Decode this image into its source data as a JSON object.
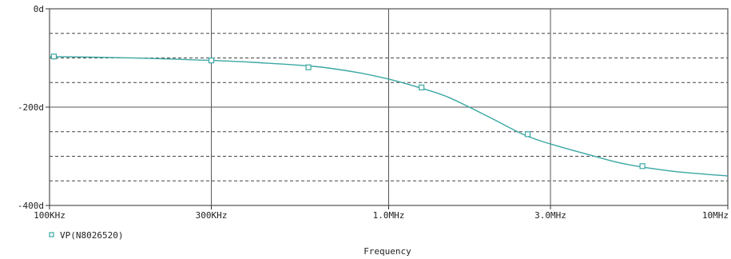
{
  "chart_data": {
    "type": "line",
    "xscale": "log",
    "xlabel": "Frequency",
    "ylabel": "",
    "xlim": [
      100000,
      10000000
    ],
    "ylim": [
      -400,
      0
    ],
    "x_ticks": [
      {
        "value": 100000,
        "label": "100KHz"
      },
      {
        "value": 300000,
        "label": "300KHz"
      },
      {
        "value": 1000000,
        "label": "1.0MHz"
      },
      {
        "value": 3000000,
        "label": "3.0MHz"
      },
      {
        "value": 10000000,
        "label": "10MHz"
      }
    ],
    "y_ticks": [
      {
        "value": 0,
        "label": "0d"
      },
      {
        "value": -200,
        "label": "-200d"
      },
      {
        "value": -400,
        "label": "-400d"
      }
    ],
    "y_dashed_gridlines": [
      -50,
      -100,
      -150,
      -250,
      -300,
      -350
    ],
    "grid": true,
    "legend": "bottom-left",
    "series": [
      {
        "name": "VP(N8026520)",
        "color": "#3aa7a3",
        "marker": "square",
        "x": [
          100000,
          150000,
          200000,
          300000,
          400000,
          600000,
          800000,
          1000000,
          1200000,
          1500000,
          2000000,
          2500000,
          3000000,
          4000000,
          5000000,
          7000000,
          10000000
        ],
        "y": [
          -97,
          -99,
          -101,
          -105,
          -109,
          -117,
          -129,
          -143,
          -158,
          -180,
          -222,
          -256,
          -275,
          -299,
          -316,
          -331,
          -340
        ],
        "marker_x": [
          103000,
          300000,
          580000,
          1250000,
          2570000,
          5600000
        ],
        "marker_y": [
          -97,
          -105,
          -119,
          -160,
          -255,
          -320
        ]
      }
    ]
  }
}
